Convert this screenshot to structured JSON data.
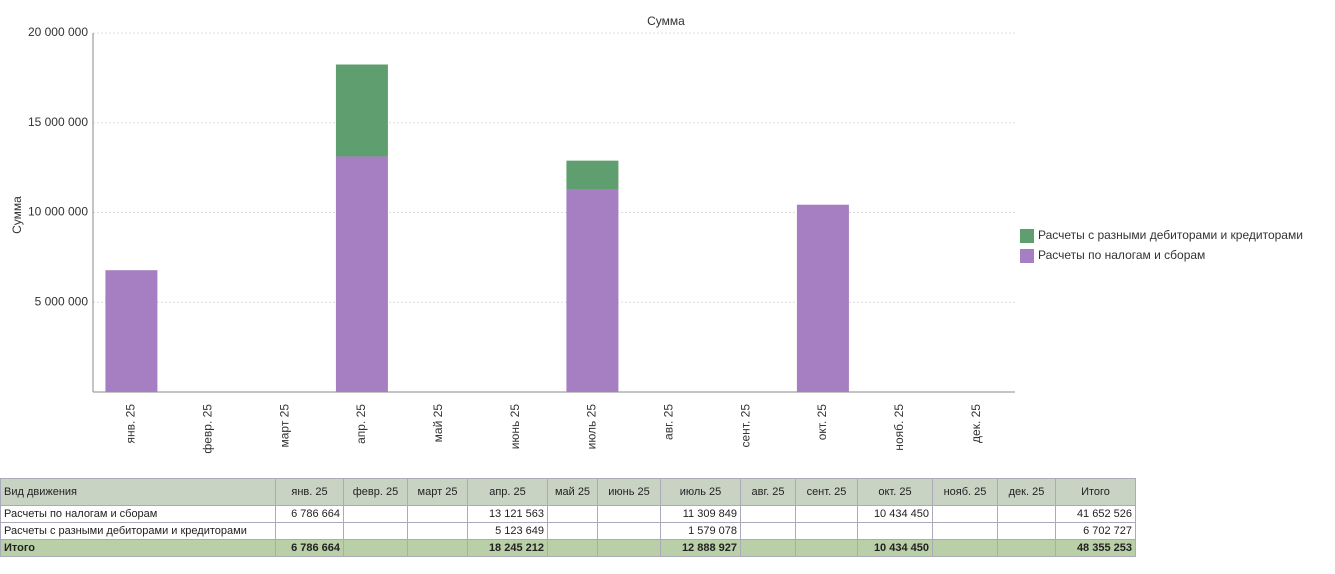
{
  "chart_data": {
    "type": "stacked_bar",
    "title": "Сумма",
    "y_label": "Сумма",
    "categories": [
      "янв. 25",
      "февр. 25",
      "март 25",
      "апр. 25",
      "май 25",
      "июнь 25",
      "июль 25",
      "авг. 25",
      "сент. 25",
      "окт. 25",
      "нояб. 25",
      "дек. 25"
    ],
    "series": [
      {
        "name": "Расчеты по налогам и сборам",
        "color": "#a57fc2",
        "values": [
          6786664,
          null,
          null,
          13121563,
          null,
          null,
          11309849,
          null,
          null,
          10434450,
          null,
          null
        ]
      },
      {
        "name": "Расчеты с разными дебиторами и кредиторами",
        "color": "#5f9e6e",
        "values": [
          null,
          null,
          null,
          5123649,
          null,
          null,
          1579078,
          null,
          null,
          null,
          null,
          null
        ]
      }
    ],
    "ylim": [
      0,
      20000000
    ],
    "yticks": [
      {
        "value": 5000000,
        "label": "5 000 000"
      },
      {
        "value": 10000000,
        "label": "10 000 000"
      },
      {
        "value": 15000000,
        "label": "15 000 000"
      },
      {
        "value": 20000000,
        "label": "20 000 000"
      }
    ],
    "grid": true,
    "legend": "right"
  },
  "table": {
    "header": [
      "Вид движения",
      "янв. 25",
      "февр. 25",
      "март 25",
      "апр. 25",
      "май 25",
      "июнь 25",
      "июль 25",
      "авг. 25",
      "сент. 25",
      "окт. 25",
      "нояб. 25",
      "дек. 25",
      "Итого"
    ],
    "rows": [
      [
        "Расчеты по налогам и сборам",
        "6 786 664",
        null,
        null,
        "13 121 563",
        null,
        null,
        "11 309 849",
        null,
        null,
        "10 434 450",
        null,
        null,
        "41 652 526"
      ],
      [
        "Расчеты с разными дебиторами и кредиторами",
        null,
        null,
        null,
        "5 123 649",
        null,
        null,
        "1 579 078",
        null,
        null,
        null,
        null,
        null,
        "6 702 727"
      ],
      [
        "Итого",
        "6 786 664",
        null,
        null,
        "18 245 212",
        null,
        null,
        "12 888 927",
        null,
        null,
        "10 434 450",
        null,
        null,
        "48 355 253"
      ]
    ]
  }
}
